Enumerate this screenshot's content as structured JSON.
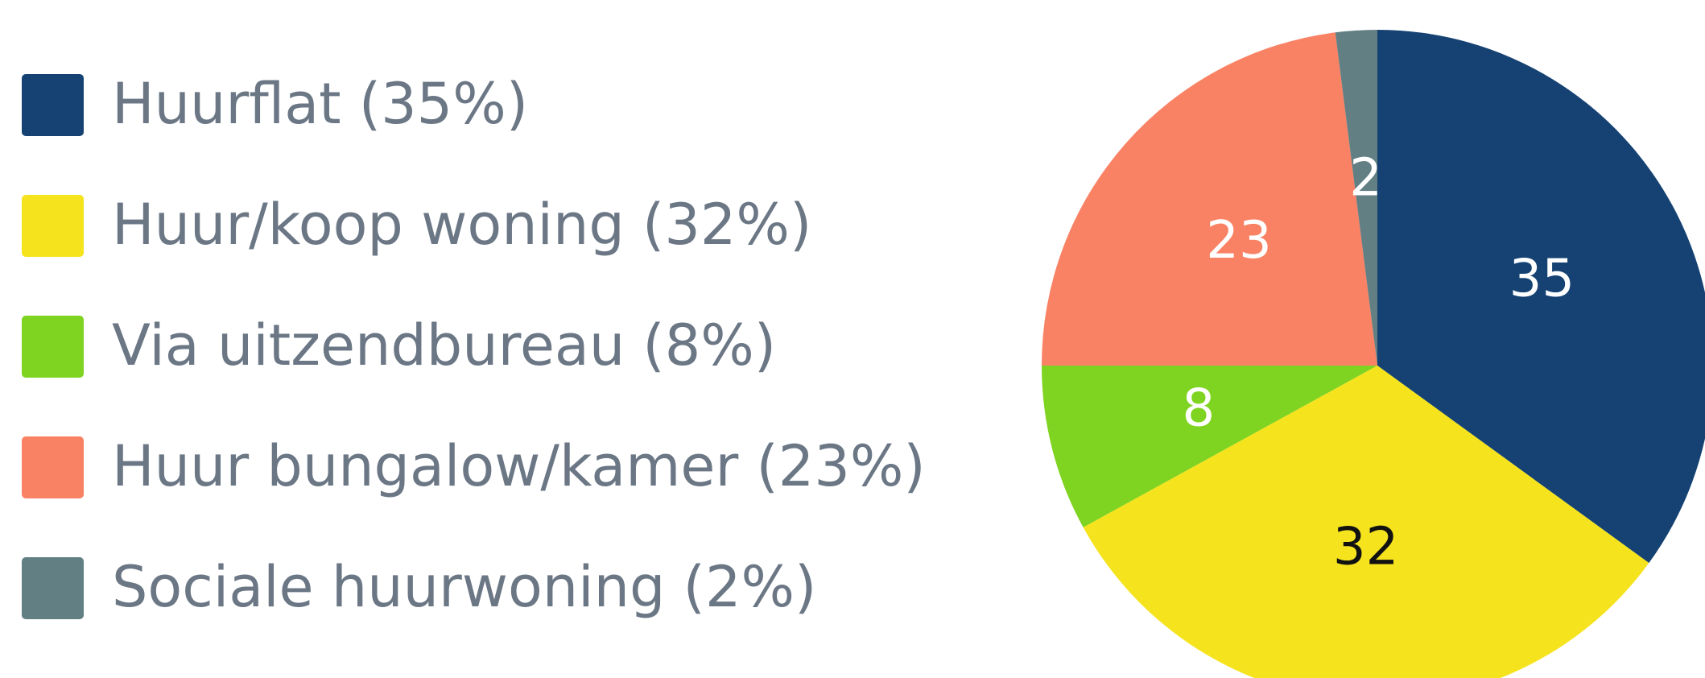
{
  "chart_data": {
    "type": "pie",
    "categories": [
      "Huurflat (35%)",
      "Huur/koop woning (32%)",
      "Via uitzendbureau (8%)",
      "Huur bungalow/kamer (23%)",
      "Sociale huurwoning (2%)"
    ],
    "values": [
      35,
      32,
      8,
      23,
      2
    ],
    "colors": [
      "#154273",
      "#f5e31e",
      "#7fd321",
      "#fa8264",
      "#627f84"
    ],
    "label_colors": [
      "#ffffff",
      "#111111",
      "#ffffff",
      "#ffffff",
      "#ffffff"
    ],
    "legend": "left"
  }
}
